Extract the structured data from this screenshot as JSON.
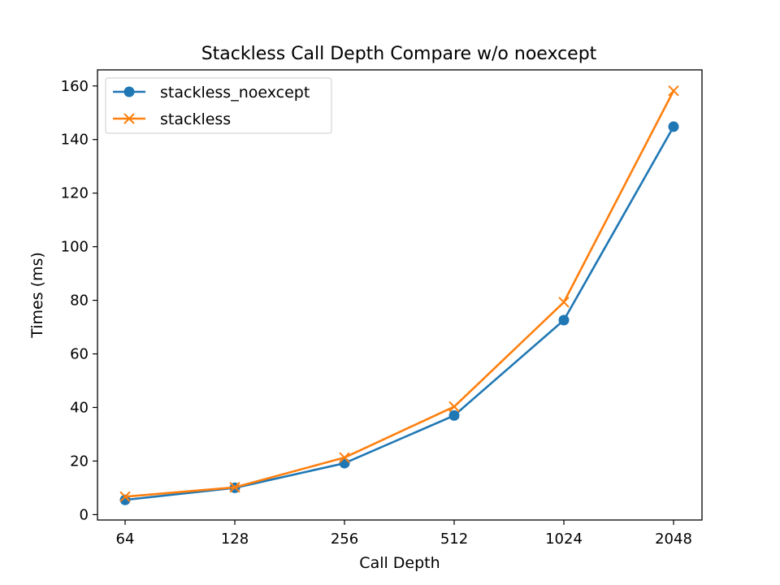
{
  "chart_data": {
    "type": "line",
    "title": "Stackless Call Depth Compare w/o noexcept",
    "xlabel": "Call Depth",
    "ylabel": "Times (ms)",
    "categories": [
      "64",
      "128",
      "256",
      "512",
      "1024",
      "2048"
    ],
    "ylim": [
      -2,
      166
    ],
    "yticks": [
      0,
      20,
      40,
      60,
      80,
      100,
      120,
      140,
      160
    ],
    "grid": false,
    "legend_position": "top-left",
    "series": [
      {
        "name": "stackless_noexcept",
        "color": "#1f77b4",
        "marker": "circle",
        "values": [
          5.5,
          10.0,
          19.2,
          37.0,
          72.6,
          144.8
        ]
      },
      {
        "name": "stackless",
        "color": "#ff7f0e",
        "marker": "x",
        "values": [
          6.7,
          10.2,
          21.3,
          40.3,
          79.3,
          158.2
        ]
      }
    ]
  }
}
